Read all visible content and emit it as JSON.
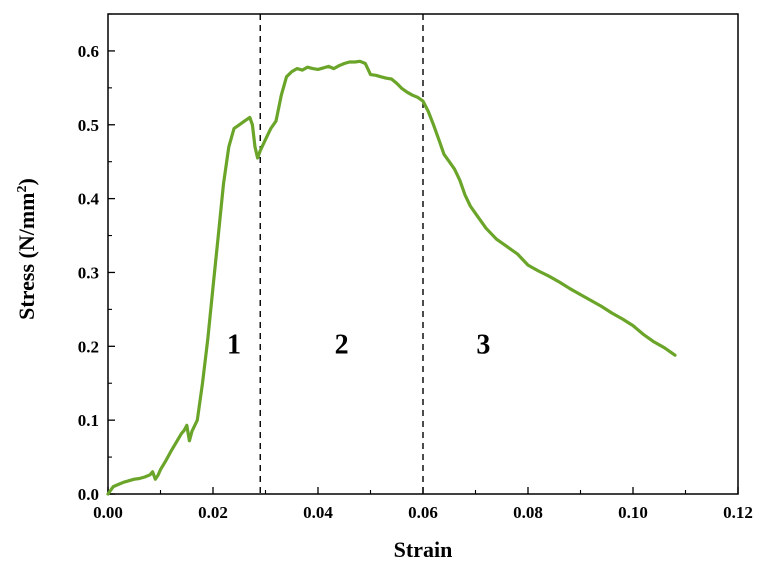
{
  "chart_data": {
    "type": "line",
    "xlabel": "Strain",
    "ylabel_main": "Stress (N/mm",
    "ylabel_sup": "2",
    "ylabel_close": ")",
    "xlim": [
      0,
      0.12
    ],
    "ylim": [
      0,
      0.65
    ],
    "xticks": [
      0.0,
      0.02,
      0.04,
      0.06,
      0.08,
      0.1,
      0.12
    ],
    "xtick_labels": [
      "0.00",
      "0.02",
      "0.04",
      "0.06",
      "0.08",
      "0.10",
      "0.12"
    ],
    "yticks": [
      0.0,
      0.1,
      0.2,
      0.3,
      0.4,
      0.5,
      0.6
    ],
    "ytick_labels": [
      "0.0",
      "0.1",
      "0.2",
      "0.3",
      "0.4",
      "0.5",
      "0.6"
    ],
    "grid": false,
    "line_color": "#6aa52a",
    "divider_lines": [
      0.029,
      0.06
    ],
    "regions": [
      {
        "label": "1",
        "x": 0.024,
        "y": 0.19
      },
      {
        "label": "2",
        "x": 0.0445,
        "y": 0.19
      },
      {
        "label": "3",
        "x": 0.0715,
        "y": 0.19
      }
    ],
    "series": [
      {
        "x": [
          0.0,
          0.001,
          0.002,
          0.003,
          0.004,
          0.005,
          0.006,
          0.007,
          0.008,
          0.0085,
          0.009,
          0.0095,
          0.01,
          0.011,
          0.012,
          0.013,
          0.014,
          0.0145,
          0.015,
          0.0155,
          0.016,
          0.017,
          0.018,
          0.019,
          0.02,
          0.021,
          0.022,
          0.023,
          0.024,
          0.025,
          0.026,
          0.027,
          0.0275,
          0.028,
          0.0285,
          0.029,
          0.03,
          0.031,
          0.032,
          0.033,
          0.034,
          0.035,
          0.036,
          0.037,
          0.038,
          0.039,
          0.04,
          0.041,
          0.042,
          0.043,
          0.044,
          0.045,
          0.046,
          0.047,
          0.048,
          0.049,
          0.05,
          0.051,
          0.052,
          0.053,
          0.054,
          0.055,
          0.056,
          0.057,
          0.058,
          0.059,
          0.06,
          0.061,
          0.062,
          0.063,
          0.064,
          0.065,
          0.066,
          0.067,
          0.068,
          0.069,
          0.07,
          0.072,
          0.074,
          0.076,
          0.078,
          0.08,
          0.082,
          0.084,
          0.086,
          0.088,
          0.09,
          0.092,
          0.094,
          0.096,
          0.098,
          0.1,
          0.102,
          0.104,
          0.106,
          0.108
        ],
        "y": [
          0.0,
          0.01,
          0.013,
          0.016,
          0.018,
          0.02,
          0.021,
          0.023,
          0.026,
          0.03,
          0.02,
          0.025,
          0.033,
          0.045,
          0.058,
          0.07,
          0.082,
          0.086,
          0.093,
          0.072,
          0.085,
          0.1,
          0.15,
          0.21,
          0.28,
          0.35,
          0.42,
          0.47,
          0.495,
          0.5,
          0.505,
          0.51,
          0.5,
          0.47,
          0.455,
          0.465,
          0.48,
          0.495,
          0.505,
          0.54,
          0.565,
          0.572,
          0.576,
          0.574,
          0.578,
          0.576,
          0.575,
          0.577,
          0.579,
          0.576,
          0.58,
          0.583,
          0.585,
          0.585,
          0.586,
          0.583,
          0.568,
          0.567,
          0.565,
          0.563,
          0.562,
          0.556,
          0.549,
          0.544,
          0.54,
          0.537,
          0.532,
          0.518,
          0.5,
          0.48,
          0.46,
          0.45,
          0.44,
          0.425,
          0.405,
          0.39,
          0.38,
          0.36,
          0.345,
          0.335,
          0.325,
          0.31,
          0.302,
          0.295,
          0.287,
          0.278,
          0.27,
          0.262,
          0.254,
          0.245,
          0.237,
          0.228,
          0.216,
          0.206,
          0.198,
          0.188
        ]
      }
    ]
  }
}
